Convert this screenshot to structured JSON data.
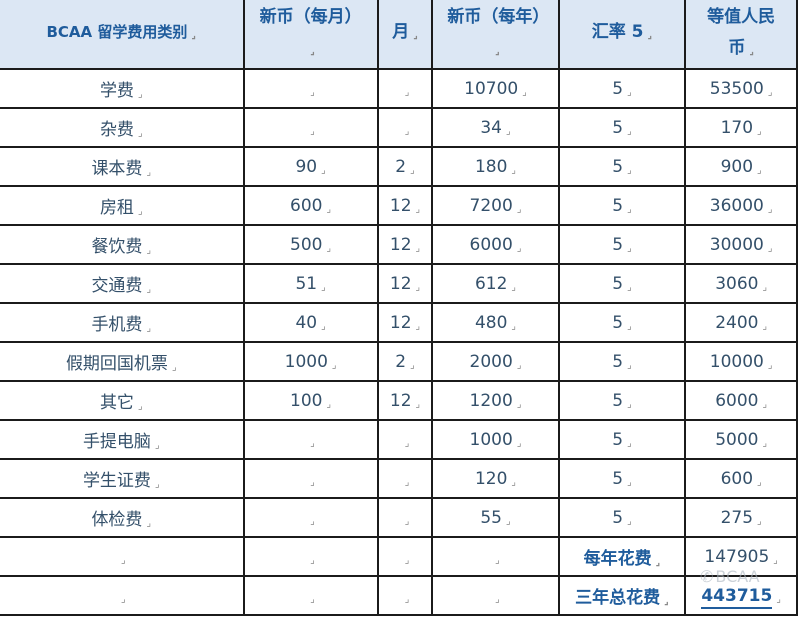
{
  "table": {
    "headers": [
      "BCAA 留学费用类别",
      "新币（每月）",
      "月",
      "新币（每年）",
      "汇率 5",
      "等值人民币"
    ],
    "rows": [
      [
        "学费",
        "",
        "",
        "10700",
        "5",
        "53500"
      ],
      [
        "杂费",
        "",
        "",
        "34",
        "5",
        "170"
      ],
      [
        "课本费",
        "90",
        "2",
        "180",
        "5",
        "900"
      ],
      [
        "房租",
        "600",
        "12",
        "7200",
        "5",
        "36000"
      ],
      [
        "餐饮费",
        "500",
        "12",
        "6000",
        "5",
        "30000"
      ],
      [
        "交通费",
        "51",
        "12",
        "612",
        "5",
        "3060"
      ],
      [
        "手机费",
        "40",
        "12",
        "480",
        "5",
        "2400"
      ],
      [
        "假期回国机票",
        "1000",
        "2",
        "2000",
        "5",
        "10000"
      ],
      [
        "其它",
        "100",
        "12",
        "1200",
        "5",
        "6000"
      ],
      [
        "手提电脑",
        "",
        "",
        "1000",
        "5",
        "5000"
      ],
      [
        "学生证费",
        "",
        "",
        "120",
        "5",
        "600"
      ],
      [
        "体检费",
        "",
        "",
        "55",
        "5",
        "275"
      ]
    ],
    "totals": [
      {
        "label": "每年花费",
        "value": "147905"
      },
      {
        "label": "三年总花费",
        "value": "443715"
      }
    ]
  },
  "watermark": {
    "text": "BCAA",
    "icon": "wechat-icon"
  },
  "colors": {
    "header_bg": "#dce7f4",
    "header_text": "#1f5c9c",
    "cell_text": "#34506a"
  }
}
